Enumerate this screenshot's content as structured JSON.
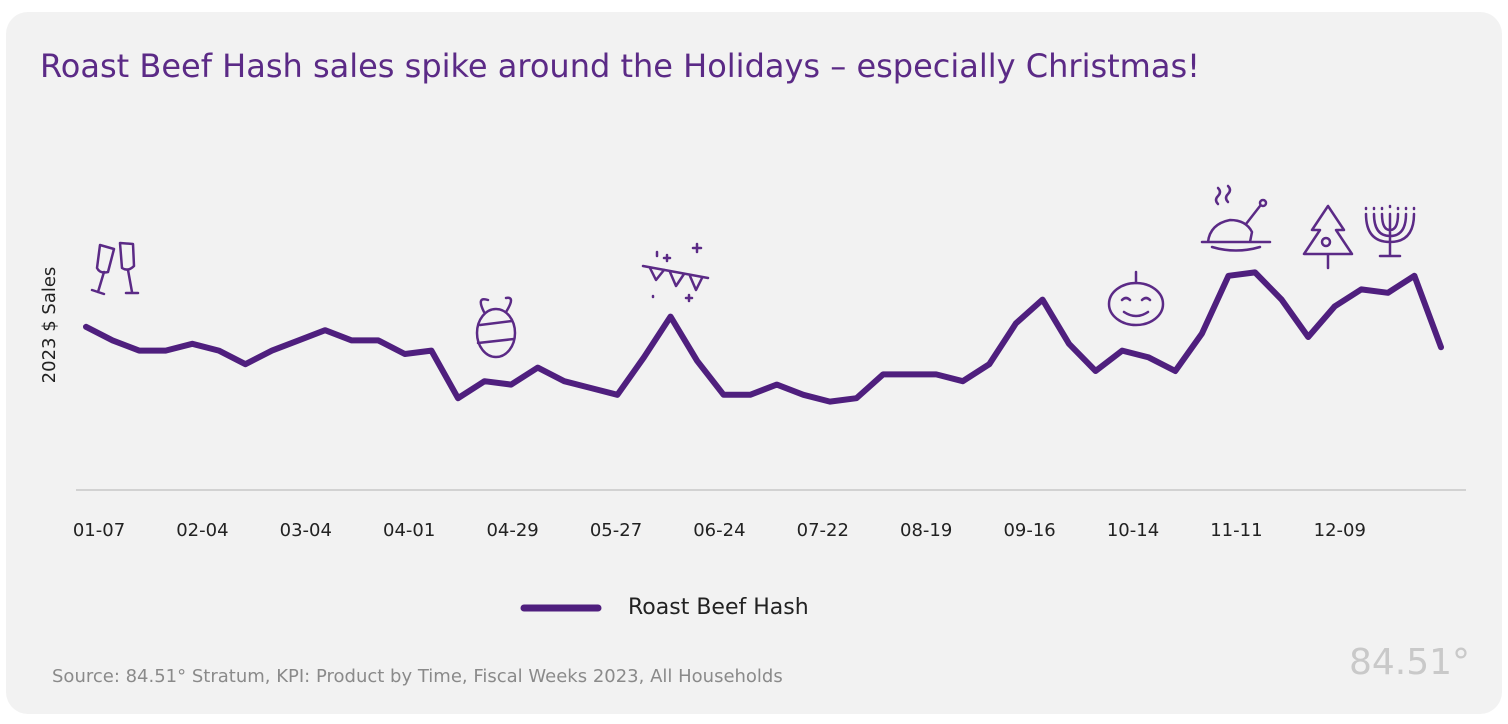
{
  "chart_data": {
    "type": "line",
    "title": "Roast Beef Hash sales spike around the Holidays – especially Christmas!",
    "y_label": "2023 $  Sales",
    "categories": [
      "01-07",
      null,
      null,
      null,
      "02-04",
      null,
      null,
      null,
      "03-04",
      null,
      null,
      null,
      "04-01",
      null,
      null,
      null,
      "04-29",
      null,
      null,
      null,
      "05-27",
      null,
      null,
      null,
      "06-24",
      null,
      null,
      null,
      "07-22",
      null,
      null,
      null,
      "08-19",
      null,
      null,
      null,
      "09-16",
      null,
      null,
      null,
      "10-14",
      null,
      null,
      null,
      "11-11",
      null,
      null,
      null,
      "12-09",
      null,
      null,
      null
    ],
    "series": [
      {
        "name": "Roast Beef Hash",
        "color": "#4f1f7e",
        "values": [
          48,
          44,
          41,
          41,
          43,
          41,
          37,
          41,
          44,
          47,
          44,
          44,
          40,
          41,
          27,
          32,
          31,
          36,
          32,
          30,
          28,
          39,
          51,
          38,
          28,
          28,
          31,
          28,
          26,
          27,
          34,
          34,
          34,
          32,
          37,
          49,
          56,
          43,
          35,
          41,
          39,
          35,
          46,
          63,
          64,
          56,
          45,
          54,
          59,
          58,
          63,
          42
        ]
      }
    ],
    "ylim": [
      0,
      100
    ],
    "source": "Source: 84.51° Stratum, KPI: Product by Time, Fiscal Weeks 2023, All Households",
    "logo": "84.51°"
  }
}
